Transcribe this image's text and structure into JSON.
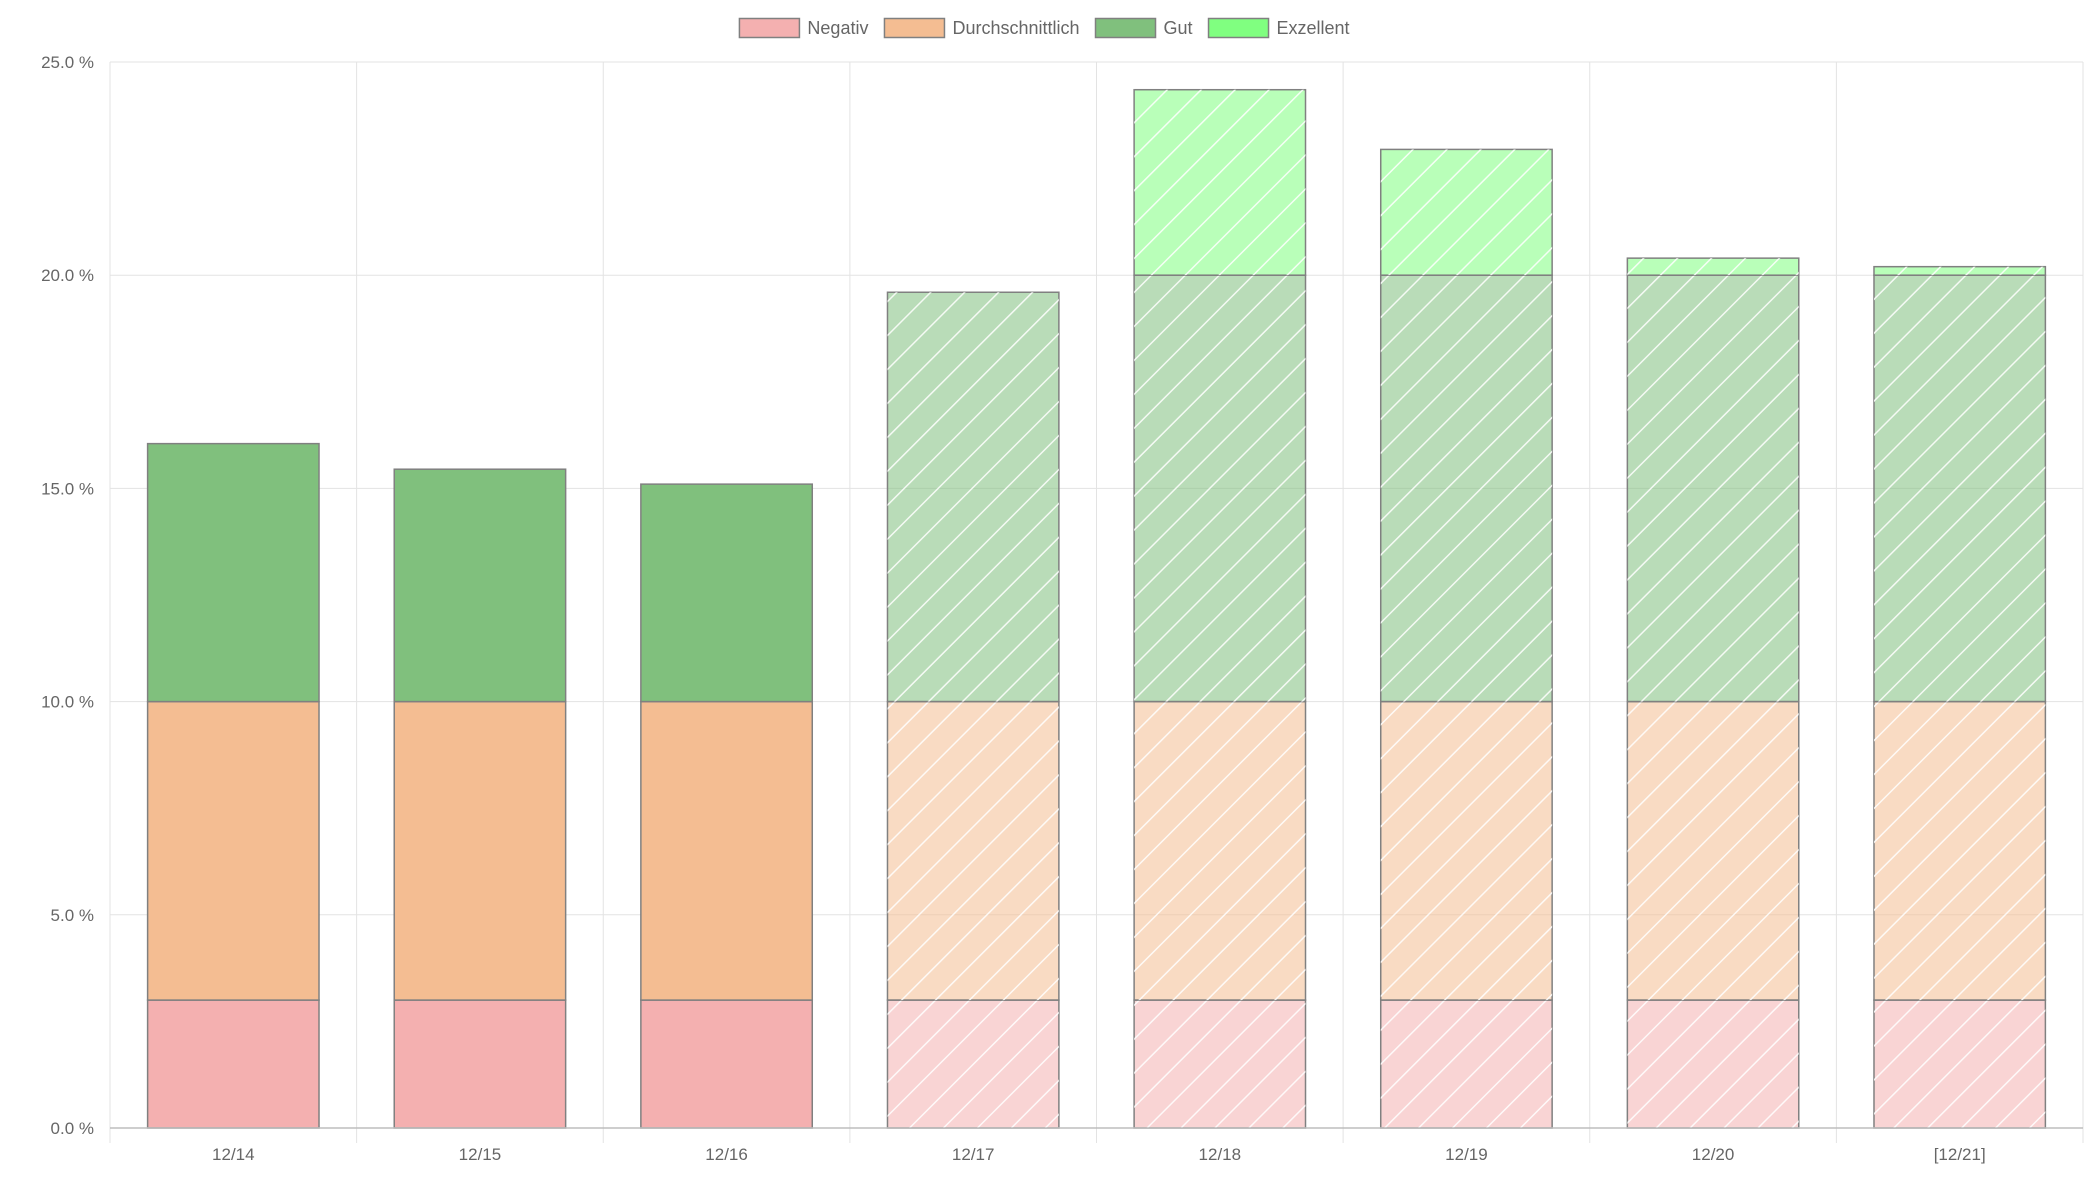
{
  "chart_data": {
    "type": "bar",
    "stacked": true,
    "categories": [
      "12/14",
      "12/15",
      "12/16",
      "12/17",
      "12/18",
      "12/19",
      "12/20",
      "[12/21]"
    ],
    "series": [
      {
        "name": "Negativ",
        "color": "#f4b0b0",
        "values": [
          3.0,
          3.0,
          3.0,
          3.0,
          3.0,
          3.0,
          3.0,
          3.0
        ]
      },
      {
        "name": "Durchschnittlich",
        "color": "#f4bd92",
        "values": [
          7.0,
          7.0,
          7.0,
          7.0,
          7.0,
          7.0,
          7.0,
          7.0
        ]
      },
      {
        "name": "Gut",
        "color": "#80c07d",
        "values": [
          6.05,
          5.45,
          5.1,
          9.6,
          10.0,
          10.0,
          10.0,
          10.0
        ]
      },
      {
        "name": "Exzellent",
        "color": "#80ff80",
        "values": [
          0,
          0,
          0,
          0,
          4.35,
          2.95,
          0.4,
          0.2
        ]
      }
    ],
    "hatched_categories": [
      "12/17",
      "12/18",
      "12/19",
      "12/20",
      "[12/21]"
    ],
    "ylim": [
      0,
      25
    ],
    "y_ticks": [
      "0.0 %",
      "5.0 %",
      "10.0 %",
      "15.0 %",
      "20.0 %",
      "25.0 %"
    ],
    "y_tick_values": [
      0,
      5,
      10,
      15,
      20,
      25
    ],
    "grid": true,
    "legend_position": "top-center"
  }
}
